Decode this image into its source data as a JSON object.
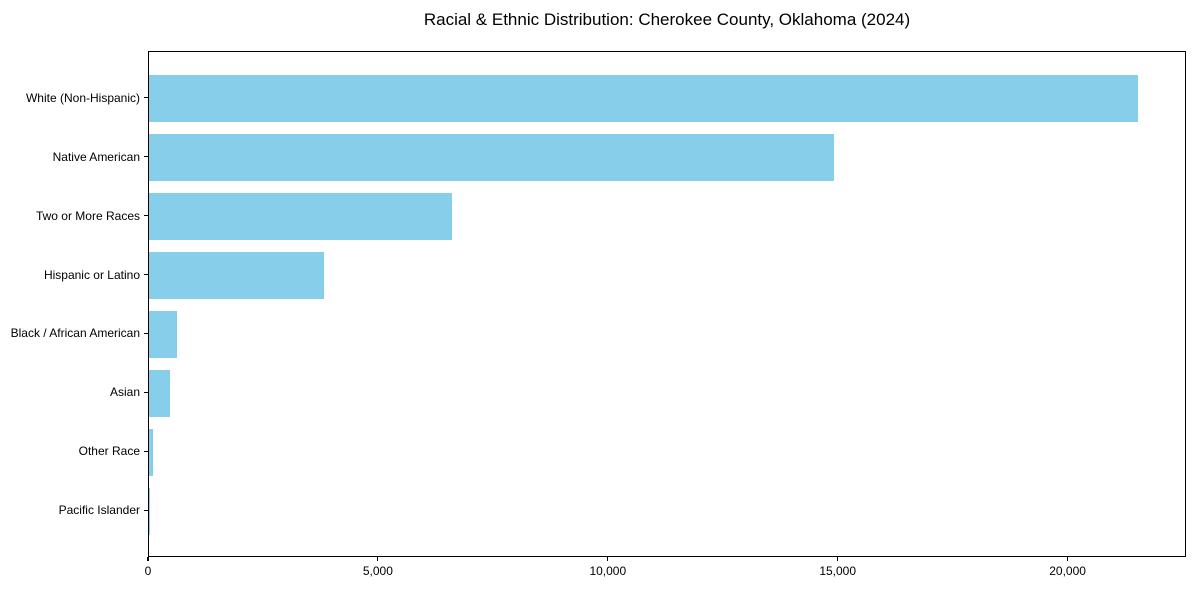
{
  "chart_data": {
    "type": "bar",
    "orientation": "horizontal",
    "title": "Racial & Ethnic Distribution: Cherokee County, Oklahoma (2024)",
    "categories": [
      "White (Non-Hispanic)",
      "Native American",
      "Two or More Races",
      "Hispanic or Latino",
      "Black / African American",
      "Asian",
      "Other Race",
      "Pacific Islander"
    ],
    "values": [
      21500,
      14900,
      6600,
      3800,
      600,
      450,
      80,
      25
    ],
    "xlabel": "",
    "ylabel": "",
    "xlim": [
      0,
      22575
    ],
    "x_ticks": [
      {
        "value": 0,
        "label": "0"
      },
      {
        "value": 5000,
        "label": "5,000"
      },
      {
        "value": 10000,
        "label": "10,000"
      },
      {
        "value": 15000,
        "label": "15,000"
      },
      {
        "value": 20000,
        "label": "20,000"
      }
    ],
    "bar_color": "#87CEEB",
    "axis_color": "#000000",
    "background_color": "#FFFFFF",
    "grid": false,
    "legend": false
  }
}
